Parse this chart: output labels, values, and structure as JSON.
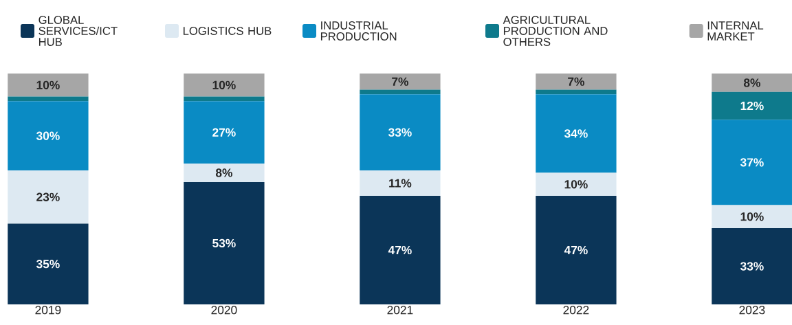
{
  "chart_data": {
    "type": "bar",
    "stacked": true,
    "legend": "top",
    "categories": [
      "2019",
      "2020",
      "2021",
      "2022",
      "2023"
    ],
    "series": [
      {
        "name": "GLOBAL SERVICES/ICT HUB",
        "color": "#0b3558",
        "values": [
          35,
          53,
          47,
          47,
          33
        ],
        "value_labels": [
          "35%",
          "53%",
          "47%",
          "47%",
          "33%"
        ]
      },
      {
        "name": "LOGISTICS HUB",
        "color": "#dde9f2",
        "values": [
          23,
          8,
          11,
          10,
          10
        ],
        "value_labels": [
          "23%",
          "8%",
          "11%",
          "10%",
          "10%"
        ]
      },
      {
        "name": "INDUSTRIAL PRODUCTION",
        "color": "#0a8bc4",
        "values": [
          30,
          27,
          33,
          34,
          37
        ],
        "value_labels": [
          "30%",
          "27%",
          "33%",
          "34%",
          "37%"
        ]
      },
      {
        "name": "AGRICULTURAL PRODUCTION AND OTHERS",
        "color": "#0e7a8c",
        "values": [
          2,
          2,
          2,
          2,
          12
        ],
        "value_labels": [
          null,
          null,
          null,
          null,
          "12%"
        ]
      },
      {
        "name": "INTERNAL MARKET",
        "color": "#a6a6a6",
        "values": [
          10,
          10,
          7,
          7,
          8
        ],
        "value_labels": [
          "10%",
          "10%",
          "7%",
          "7%",
          "8%"
        ]
      }
    ]
  }
}
